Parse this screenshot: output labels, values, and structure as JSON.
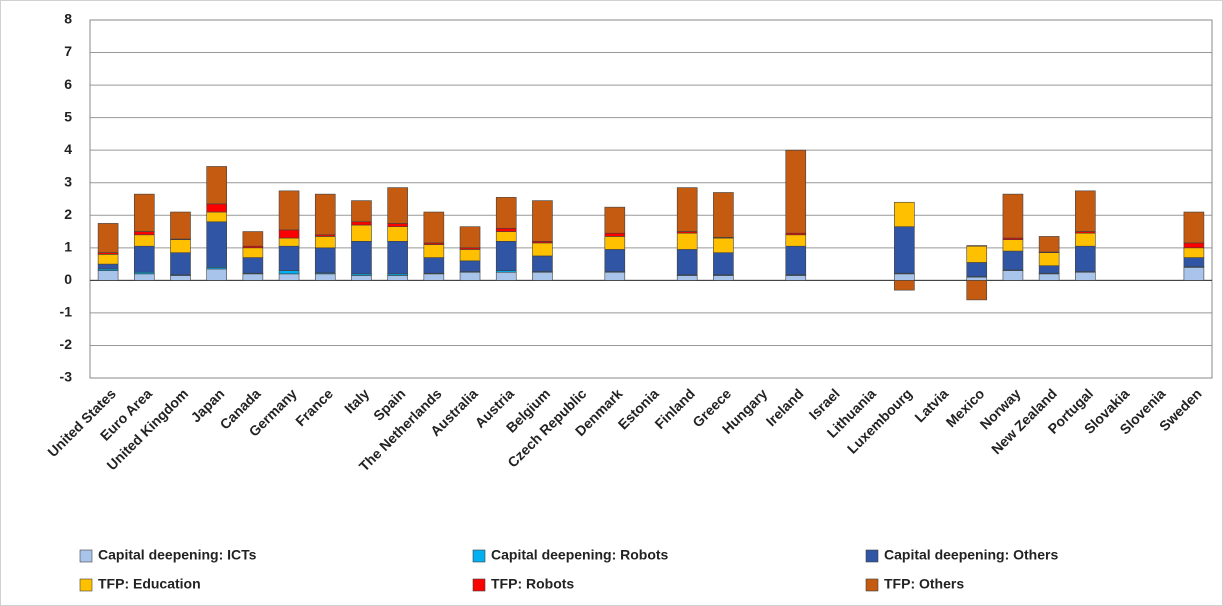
{
  "chart_data": {
    "type": "stacked_bar",
    "categories": [
      "United States",
      "Euro Area",
      "United Kingdom",
      "Japan",
      "Canada",
      "Germany",
      "France",
      "Italy",
      "Spain",
      "The Netherlands",
      "Australia",
      "Austria",
      "Belgium",
      "Czech Republic",
      "Denmark",
      "Estonia",
      "Finland",
      "Greece",
      "Hungary",
      "Ireland",
      "Israel",
      "Lithuania",
      "Luxembourg",
      "Latvia",
      "Mexico",
      "Norway",
      "New Zealand",
      "Portugal",
      "Slovakia",
      "Slovenia",
      "Sweden"
    ],
    "series": [
      {
        "name": "Capital deepening: ICTs",
        "color": "#a9c4eb",
        "values": [
          0.3,
          0.2,
          0.15,
          0.35,
          0.2,
          0.2,
          0.2,
          0.15,
          0.15,
          0.2,
          0.25,
          0.25,
          0.25,
          null,
          0.25,
          null,
          0.15,
          0.15,
          null,
          0.15,
          null,
          null,
          0.2,
          null,
          0.1,
          0.3,
          0.2,
          0.25,
          null,
          null,
          0.4
        ]
      },
      {
        "name": "Capital deepening: Robots",
        "color": "#00b0f0",
        "values": [
          0.05,
          0.05,
          0.02,
          0.05,
          0.02,
          0.1,
          0.03,
          0.05,
          0.05,
          0.02,
          0.02,
          0.05,
          0.02,
          null,
          0.02,
          null,
          0.02,
          0.02,
          null,
          0.02,
          null,
          null,
          0.02,
          null,
          0.02,
          0.02,
          0.02,
          0.02,
          null,
          null,
          0.02
        ]
      },
      {
        "name": "Capital deepening: Others",
        "color": "#2f55a4",
        "values": [
          0.15,
          0.8,
          0.68,
          1.4,
          0.48,
          0.75,
          0.77,
          1.0,
          1.0,
          0.48,
          0.33,
          0.9,
          0.48,
          null,
          0.68,
          null,
          0.78,
          0.68,
          null,
          0.88,
          null,
          null,
          1.43,
          null,
          0.43,
          0.58,
          0.23,
          0.78,
          null,
          null,
          0.28
        ]
      },
      {
        "name": "TFP: Education",
        "color": "#ffc000",
        "values": [
          0.3,
          0.35,
          0.4,
          0.3,
          0.3,
          0.25,
          0.35,
          0.5,
          0.45,
          0.4,
          0.35,
          0.3,
          0.4,
          null,
          0.4,
          null,
          0.5,
          0.45,
          null,
          0.35,
          null,
          null,
          0.75,
          null,
          0.5,
          0.35,
          0.4,
          0.4,
          null,
          null,
          0.3
        ]
      },
      {
        "name": "TFP: Robots",
        "color": "#ff0000",
        "values": [
          0.05,
          0.1,
          0.02,
          0.25,
          0.05,
          0.25,
          0.05,
          0.1,
          0.1,
          0.05,
          0.05,
          0.1,
          0.05,
          null,
          0.1,
          null,
          0.05,
          0.02,
          null,
          0.05,
          null,
          null,
          0,
          null,
          0.02,
          0.05,
          0.02,
          0.05,
          null,
          null,
          0.15
        ]
      },
      {
        "name": "TFP: Others",
        "color": "#c55a11",
        "values": [
          0.9,
          1.15,
          0.83,
          1.15,
          0.45,
          1.2,
          1.25,
          0.65,
          1.1,
          0.95,
          0.65,
          0.95,
          1.25,
          null,
          0.8,
          null,
          1.35,
          1.38,
          null,
          2.55,
          null,
          null,
          -0.3,
          null,
          -0.6,
          1.35,
          0.48,
          1.25,
          null,
          null,
          0.95
        ]
      }
    ],
    "ylim": [
      -3,
      8
    ],
    "yticks": [
      -3,
      -2,
      -1,
      0,
      1,
      2,
      3,
      4,
      5,
      6,
      7,
      8
    ],
    "grid": true,
    "legend": "bottom"
  }
}
